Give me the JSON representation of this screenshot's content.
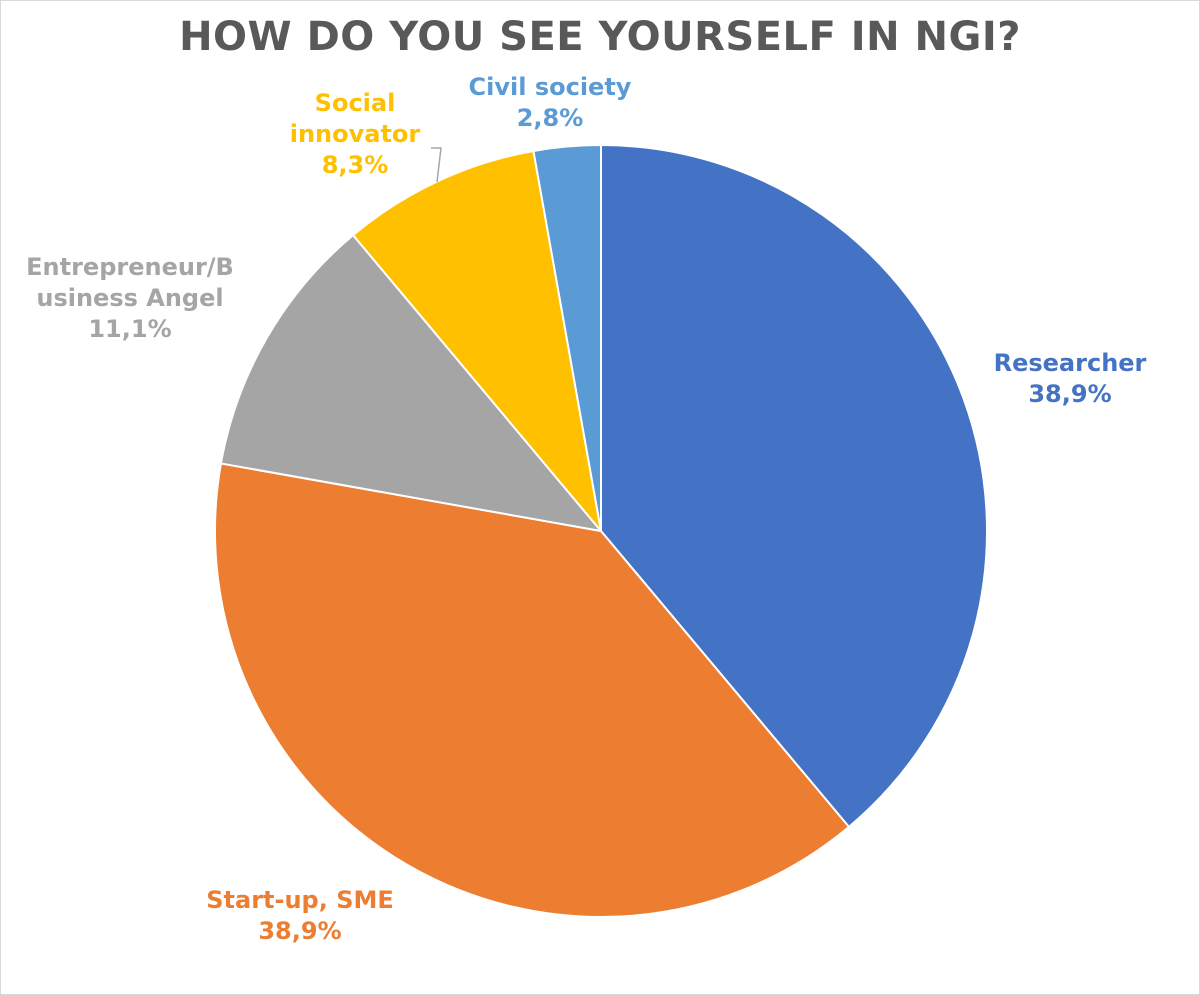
{
  "chart_data": {
    "type": "pie",
    "title": "HOW DO YOU SEE YOURSELF IN NGI?",
    "slices": [
      {
        "label": "Researcher",
        "value": 38.9,
        "display": "38,9%",
        "color": "#4472c4"
      },
      {
        "label": "Start-up, SME",
        "value": 38.9,
        "display": "38,9%",
        "color": "#ed7d31"
      },
      {
        "label": "Entrepreneur/B usiness Angel",
        "label_lines": [
          "Entrepreneur/B",
          "usiness Angel"
        ],
        "value": 11.1,
        "display": "11,1%",
        "color": "#a5a5a5"
      },
      {
        "label": "Social innovator",
        "label_lines": [
          "Social",
          "innovator"
        ],
        "value": 8.3,
        "display": "8,3%",
        "color": "#ffc000"
      },
      {
        "label": "Civil society",
        "value": 2.8,
        "display": "2,8%",
        "color": "#5b9bd5"
      }
    ],
    "start_angle": "12 o'clock",
    "direction": "clockwise",
    "legend": "none",
    "data_labels": "outside"
  }
}
